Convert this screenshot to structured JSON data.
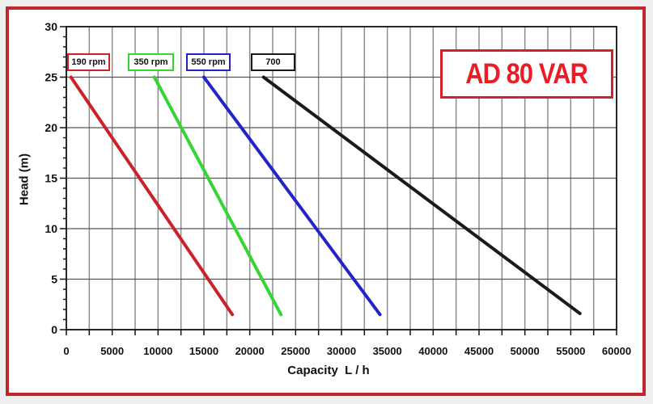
{
  "page": {
    "background": "#ececec"
  },
  "frame": {
    "border_color": "#c0272d",
    "background": "#ffffff"
  },
  "model_box": {
    "label": "AD 80 VAR",
    "text_color": "#ec1c24",
    "border_color": "#d2232a"
  },
  "chart_data": {
    "type": "line",
    "title": "AD 80 VAR",
    "xlabel": "Capacity  L / h",
    "ylabel": "Head (m)",
    "xlim": [
      0,
      60000
    ],
    "ylim": [
      0,
      30
    ],
    "x_ticks": [
      0,
      5000,
      10000,
      15000,
      20000,
      25000,
      30000,
      35000,
      40000,
      45000,
      50000,
      55000,
      60000
    ],
    "x_minor_tick_step": 2500,
    "y_ticks": [
      0,
      5,
      10,
      15,
      20,
      25,
      30
    ],
    "y_minor_tick_step": 1,
    "grid": {
      "on": true,
      "x_step": 2500,
      "y_step": 5,
      "v_color": "#8c8c8c",
      "h_color": "#555555"
    },
    "axis_color": "#111111",
    "legend_position": "top-inside",
    "series": [
      {
        "name": "190 rpm",
        "color": "#cc2127",
        "points": [
          [
            500,
            25
          ],
          [
            18100,
            1.5
          ]
        ]
      },
      {
        "name": "350 rpm",
        "color": "#35d535",
        "points": [
          [
            9600,
            25
          ],
          [
            23400,
            1.5
          ]
        ]
      },
      {
        "name": "550 rpm",
        "color": "#2323c9",
        "points": [
          [
            15000,
            25
          ],
          [
            34200,
            1.5
          ]
        ]
      },
      {
        "name": "700",
        "color": "#1a1a1a",
        "points": [
          [
            21500,
            25
          ],
          [
            56000,
            1.6
          ]
        ]
      }
    ]
  }
}
